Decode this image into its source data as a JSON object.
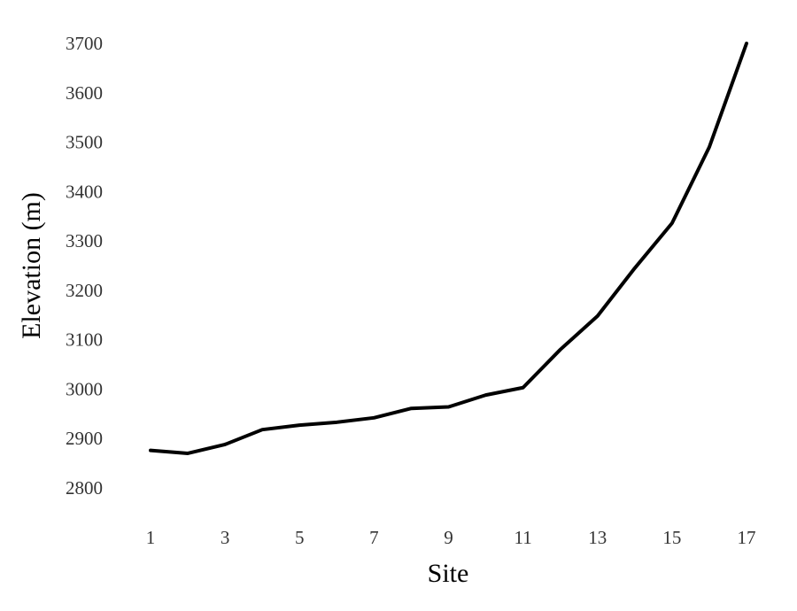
{
  "chart_data": {
    "type": "line",
    "title": "",
    "xlabel": "Site",
    "ylabel": "Elevation (m)",
    "x": [
      1,
      2,
      3,
      4,
      5,
      6,
      7,
      8,
      9,
      10,
      11,
      12,
      13,
      14,
      15,
      16,
      17
    ],
    "series": [
      {
        "values": [
          2876,
          2870,
          2888,
          2918,
          2927,
          2933,
          2942,
          2961,
          2964,
          2988,
          3003,
          3080,
          3148,
          3245,
          3336,
          3490,
          3700
        ],
        "color": "#000000"
      }
    ],
    "xticks": [
      1,
      3,
      5,
      7,
      9,
      11,
      13,
      15,
      17
    ],
    "yticks": [
      2800,
      2900,
      3000,
      3100,
      3200,
      3300,
      3400,
      3500,
      3600,
      3700
    ],
    "xlim": [
      1,
      17
    ],
    "ylim": [
      2800,
      3700
    ],
    "grid": false,
    "legend": "none"
  }
}
